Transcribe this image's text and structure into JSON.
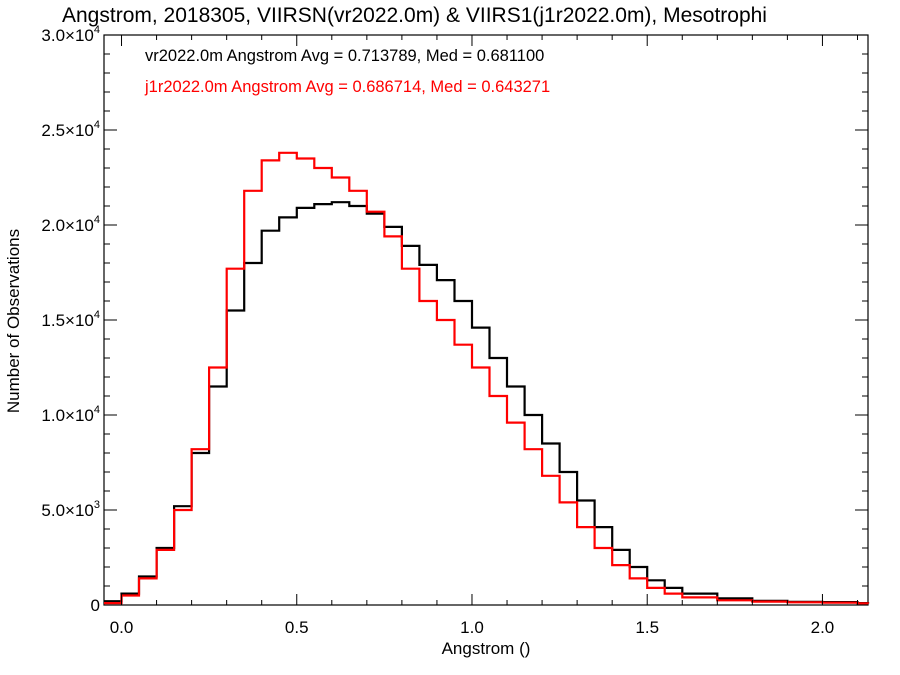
{
  "chart_data": {
    "type": "line",
    "title": "Angstrom, 2018305, VIIRSN(vr2022.0m) & VIIRS1(j1r2022.0m), Mesotrophi",
    "xlabel": "Angstrom ()",
    "ylabel": "Number of Observations",
    "xlim": [
      -0.05,
      2.13
    ],
    "ylim": [
      0,
      30000
    ],
    "x_ticks": [
      "0.0",
      "0.5",
      "1.0",
      "1.5",
      "2.0"
    ],
    "x_tick_values": [
      0.0,
      0.5,
      1.0,
      1.5,
      2.0
    ],
    "y_ticks": [
      {
        "value": 0,
        "mantissa": "0",
        "exp": ""
      },
      {
        "value": 5000,
        "mantissa": "5.0×10",
        "exp": "3"
      },
      {
        "value": 10000,
        "mantissa": "1.0×10",
        "exp": "4"
      },
      {
        "value": 15000,
        "mantissa": "1.5×10",
        "exp": "4"
      },
      {
        "value": 20000,
        "mantissa": "2.0×10",
        "exp": "4"
      },
      {
        "value": 25000,
        "mantissa": "2.5×10",
        "exp": "4"
      },
      {
        "value": 30000,
        "mantissa": "3.0×10",
        "exp": "4"
      }
    ],
    "grid": false,
    "legend_position": "top-left",
    "series": [
      {
        "name": "vr2022.0m",
        "color": "#000000",
        "legend": "vr2022.0m Angstrom Avg = 0.713789, Med = 0.681100",
        "x": [
          -0.05,
          0.0,
          0.05,
          0.1,
          0.15,
          0.2,
          0.25,
          0.3,
          0.35,
          0.4,
          0.45,
          0.5,
          0.55,
          0.6,
          0.65,
          0.7,
          0.75,
          0.8,
          0.85,
          0.9,
          0.95,
          1.0,
          1.05,
          1.1,
          1.15,
          1.2,
          1.25,
          1.3,
          1.35,
          1.4,
          1.45,
          1.5,
          1.55,
          1.6,
          1.7,
          1.8,
          1.9,
          2.0,
          2.1,
          2.13
        ],
        "y": [
          200,
          600,
          1500,
          3000,
          5200,
          8000,
          11500,
          15500,
          18000,
          19700,
          20400,
          20900,
          21100,
          21200,
          21000,
          20600,
          19900,
          18900,
          17900,
          17100,
          16000,
          14600,
          13000,
          11500,
          10000,
          8500,
          7000,
          5500,
          4100,
          2900,
          2000,
          1300,
          900,
          600,
          350,
          220,
          170,
          150,
          100,
          80
        ]
      },
      {
        "name": "j1r2022.0m",
        "color": "#ff0000",
        "legend": "j1r2022.0m Angstrom Avg = 0.686714, Med = 0.643271",
        "x": [
          -0.05,
          0.0,
          0.05,
          0.1,
          0.15,
          0.2,
          0.25,
          0.3,
          0.35,
          0.4,
          0.45,
          0.5,
          0.55,
          0.6,
          0.65,
          0.7,
          0.75,
          0.8,
          0.85,
          0.9,
          0.95,
          1.0,
          1.05,
          1.1,
          1.15,
          1.2,
          1.25,
          1.3,
          1.35,
          1.4,
          1.45,
          1.5,
          1.55,
          1.6,
          1.7,
          1.8,
          1.9,
          2.0,
          2.1,
          2.13
        ],
        "y": [
          100,
          500,
          1400,
          2900,
          5000,
          8200,
          12500,
          17700,
          21800,
          23400,
          23800,
          23500,
          23000,
          22500,
          21800,
          20700,
          19400,
          17700,
          16000,
          15000,
          13700,
          12500,
          11000,
          9600,
          8200,
          6800,
          5400,
          4100,
          3000,
          2100,
          1400,
          900,
          600,
          400,
          250,
          180,
          140,
          120,
          90,
          70
        ]
      }
    ]
  }
}
